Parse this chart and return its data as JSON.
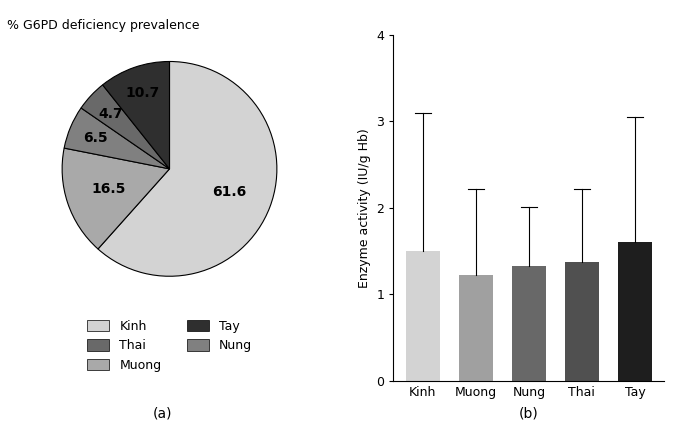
{
  "pie_title": "% G6PD deficiency prevalence",
  "pie_values": [
    61.6,
    16.5,
    6.5,
    4.7,
    10.7
  ],
  "pie_labels": [
    "61.6",
    "16.5",
    "6.5",
    "4.7",
    "10.7"
  ],
  "pie_colors": [
    "#d3d3d3",
    "#a9a9a9",
    "#808080",
    "#696969",
    "#2f2f2f"
  ],
  "pie_legend_labels": [
    "Kinh",
    "Muong",
    "Nung",
    "Thai",
    "Tay"
  ],
  "pie_startangle": 90,
  "bar_categories": [
    "Kinh",
    "Muong",
    "Nung",
    "Thai",
    "Tay"
  ],
  "bar_values": [
    1.5,
    1.22,
    1.33,
    1.37,
    1.6
  ],
  "bar_errors": [
    1.6,
    1.0,
    0.68,
    0.85,
    1.45
  ],
  "bar_colors": [
    "#d3d3d3",
    "#a0a0a0",
    "#686868",
    "#505050",
    "#1e1e1e"
  ],
  "bar_ylabel": "Enzyme activity (IU/g Hb)",
  "bar_ylim": [
    0,
    4
  ],
  "bar_yticks": [
    0,
    1,
    2,
    3,
    4
  ],
  "subplot_label_a": "(a)",
  "subplot_label_b": "(b)",
  "fig_bg": "#ffffff"
}
